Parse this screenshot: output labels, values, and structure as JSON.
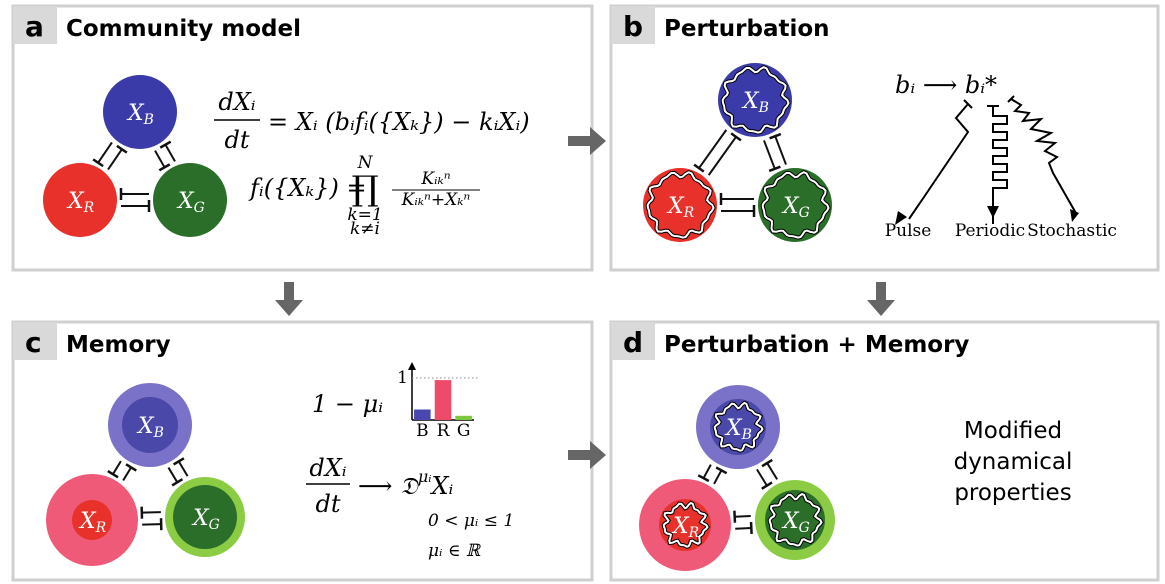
{
  "panels": [
    {
      "letter": "a",
      "title": "Community model"
    },
    {
      "letter": "b",
      "title": "Perturbation"
    },
    {
      "letter": "c",
      "title": "Memory"
    },
    {
      "letter": "d",
      "title": "Perturbation + Memory"
    }
  ],
  "community": {
    "nodes": [
      {
        "var": "X",
        "sub": "B"
      },
      {
        "var": "X",
        "sub": "R"
      },
      {
        "var": "X",
        "sub": "G"
      }
    ],
    "eq1": {
      "num": "dXᵢ",
      "den": "dt",
      "rhs": "= Xᵢ (bᵢfᵢ({Xₖ}) − kᵢXᵢ)"
    },
    "eq2": {
      "lhs": "fᵢ({Xₖ}) =",
      "prod": "∏",
      "upper": "N",
      "lower": "k=1",
      "lower2": "k≠i",
      "num": "Kᵢₖⁿ",
      "den": "Kᵢₖⁿ+Xₖⁿ"
    }
  },
  "perturbation": {
    "nodes": [
      {
        "var": "X",
        "sub": "B"
      },
      {
        "var": "X",
        "sub": "R"
      },
      {
        "var": "X",
        "sub": "G"
      }
    ],
    "eq": "bᵢ ⟶ bᵢ*",
    "kinds": [
      "Pulse",
      "Periodic",
      "Stochastic"
    ]
  },
  "memory": {
    "nodes": [
      {
        "var": "X",
        "sub": "B"
      },
      {
        "var": "X",
        "sub": "R"
      },
      {
        "var": "X",
        "sub": "G"
      }
    ],
    "label": "1 − μᵢ",
    "chart": {
      "type": "bar",
      "categories": [
        "B",
        "R",
        "G"
      ],
      "values": [
        0.25,
        0.95,
        0.1
      ],
      "colors": [
        "#4a48b0",
        "#ef4a6a",
        "#7cc840"
      ],
      "ylim": [
        0,
        1
      ],
      "yticks": [
        1
      ]
    },
    "eq": {
      "num": "dXᵢ",
      "den": "dt",
      "arrow": "⟶ 𝔇",
      "sup": "μᵢ",
      "rest": "Xᵢ"
    },
    "cond1": "0 < μᵢ ≤ 1",
    "cond2": "μᵢ ∈ ℝ"
  },
  "combined": {
    "nodes": [
      {
        "var": "X",
        "sub": "B"
      },
      {
        "var": "X",
        "sub": "R"
      },
      {
        "var": "X",
        "sub": "G"
      }
    ],
    "text": [
      "Modified",
      "dynamical",
      "properties"
    ]
  }
}
